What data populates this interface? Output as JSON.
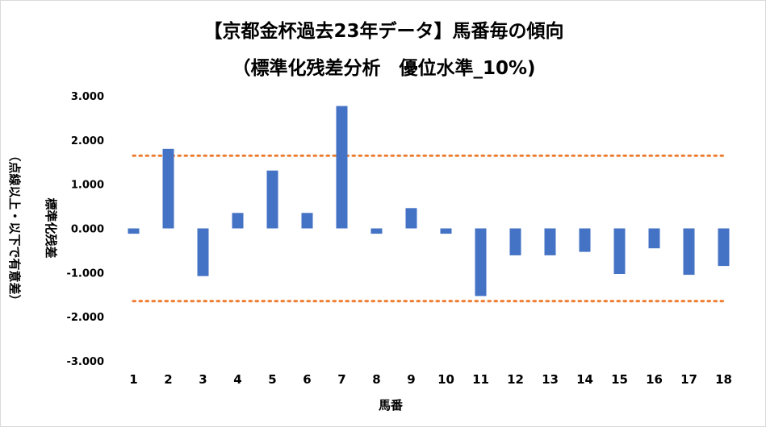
{
  "chart_data": {
    "type": "bar",
    "title": "【京都金杯過去23年データ】馬番毎の傾向",
    "subtitle": "（標準化残差分析　優位水準_10%)",
    "xlabel": "馬番",
    "ylabel": "標準化残差",
    "ylabel_note": "（点線以上・以下で有意差）",
    "categories": [
      "1",
      "2",
      "3",
      "4",
      "5",
      "6",
      "7",
      "8",
      "9",
      "10",
      "11",
      "12",
      "13",
      "14",
      "15",
      "16",
      "17",
      "18"
    ],
    "values": [
      -0.12,
      1.8,
      -1.08,
      0.35,
      1.31,
      0.35,
      2.77,
      -0.12,
      0.46,
      -0.12,
      -1.53,
      -0.61,
      -0.61,
      -0.53,
      -1.03,
      -0.45,
      -1.05,
      -0.85
    ],
    "ylim": [
      -3,
      3
    ],
    "yticks": [
      "3.000",
      "2.000",
      "1.000",
      "0.000",
      "-1.000",
      "-2.000",
      "-3.000"
    ],
    "threshold_values": [
      1.645,
      -1.645
    ],
    "bar_color": "#4472c4",
    "threshold_color": "#ed7d31",
    "grid": false,
    "legend": "none"
  }
}
